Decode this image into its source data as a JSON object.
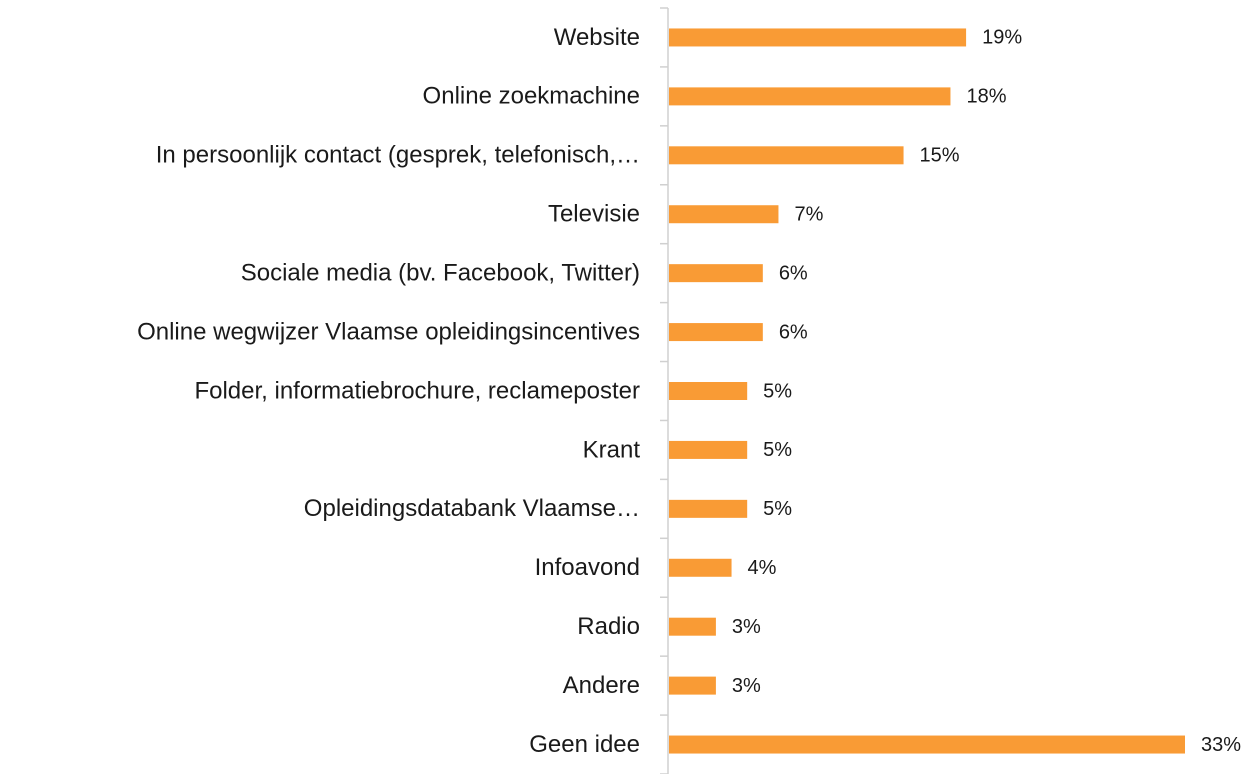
{
  "chart_data": {
    "type": "barh",
    "categories": [
      "Website",
      "Online zoekmachine",
      "In persoonlijk contact (gesprek, telefonisch,…",
      "Televisie",
      "Sociale media (bv. Facebook, Twitter)",
      "Online wegwijzer Vlaamse opleidingsincentives",
      "Folder, informatiebrochure, reclameposter",
      "Krant",
      "Opleidingsdatabank Vlaamse…",
      "Infoavond",
      "Radio",
      "Andere",
      "Geen idee"
    ],
    "values": [
      19,
      18,
      15,
      7,
      6,
      6,
      5,
      5,
      5,
      4,
      3,
      3,
      33
    ],
    "value_labels": [
      "19%",
      "18%",
      "15%",
      "7%",
      "6%",
      "6%",
      "5%",
      "5%",
      "5%",
      "4%",
      "3%",
      "3%",
      "33%"
    ],
    "color": "#f99b35"
  }
}
